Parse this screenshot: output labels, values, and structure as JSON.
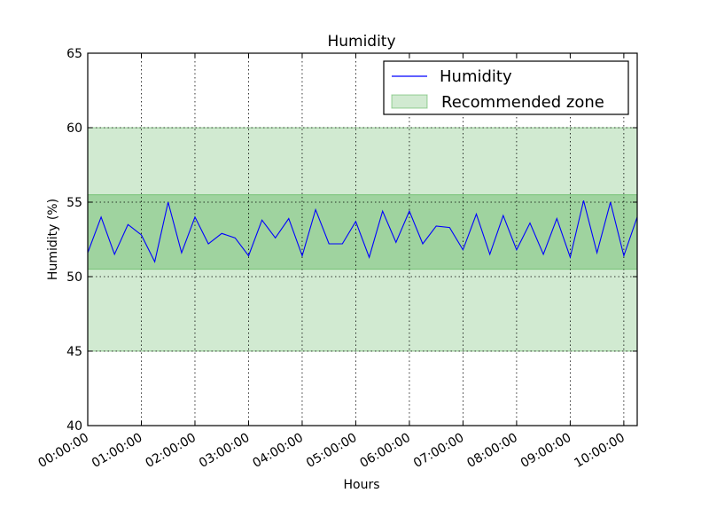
{
  "chart_data": {
    "type": "line",
    "title": "Humidity",
    "xlabel": "Hours",
    "ylabel": "Humidity (%)",
    "xlim": [
      0,
      10.25
    ],
    "ylim": [
      40,
      65
    ],
    "x_ticks": [
      0,
      1,
      2,
      3,
      4,
      5,
      6,
      7,
      8,
      9,
      10
    ],
    "x_tick_labels": [
      "00:00:00",
      "01:00:00",
      "02:00:00",
      "03:00:00",
      "04:00:00",
      "05:00:00",
      "06:00:00",
      "07:00:00",
      "08:00:00",
      "09:00:00",
      "10:00:00"
    ],
    "y_ticks": [
      40,
      45,
      50,
      55,
      60,
      65
    ],
    "y_tick_labels": [
      "40",
      "45",
      "50",
      "55",
      "60",
      "65"
    ],
    "grid": true,
    "legend_position": "top-right",
    "bands": [
      {
        "name": "Recommended zone",
        "y_range": [
          45,
          60
        ],
        "color": "#2ca02c",
        "opacity": 0.22
      },
      {
        "name": "",
        "y_range": [
          50.5,
          55.5
        ],
        "color": "#2ca02c",
        "opacity": 0.3
      }
    ],
    "series": [
      {
        "name": "Humidity",
        "color": "#0000ff",
        "x": [
          0,
          0.25,
          0.5,
          0.75,
          1,
          1.25,
          1.5,
          1.75,
          2,
          2.25,
          2.5,
          2.75,
          3,
          3.25,
          3.5,
          3.75,
          4,
          4.25,
          4.5,
          4.75,
          5,
          5.25,
          5.5,
          5.75,
          6,
          6.25,
          6.5,
          6.75,
          7,
          7.25,
          7.5,
          7.75,
          8,
          8.25,
          8.5,
          8.75,
          9,
          9.25,
          9.5,
          9.75,
          10,
          10.25
        ],
        "values": [
          51.6,
          54.0,
          51.5,
          53.5,
          52.8,
          51.0,
          55.0,
          51.6,
          54.0,
          52.2,
          52.9,
          52.6,
          51.4,
          53.8,
          52.6,
          53.9,
          51.4,
          54.5,
          52.2,
          52.2,
          53.7,
          51.3,
          54.4,
          52.3,
          54.4,
          52.2,
          53.4,
          53.3,
          51.8,
          54.2,
          51.5,
          54.1,
          51.8,
          53.6,
          51.5,
          53.9,
          51.3,
          55.1,
          51.6,
          55.0,
          51.4,
          54.0
        ]
      }
    ]
  }
}
